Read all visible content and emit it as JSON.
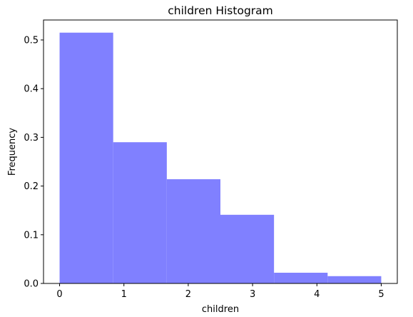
{
  "chart_data": {
    "type": "bar",
    "title": "children Histogram",
    "xlabel": "children",
    "ylabel": "Frequency",
    "bins": [
      {
        "x0": 0.0,
        "x1": 0.8333,
        "value": 0.515
      },
      {
        "x0": 0.8333,
        "x1": 1.6667,
        "value": 0.29
      },
      {
        "x0": 1.6667,
        "x1": 2.5,
        "value": 0.214
      },
      {
        "x0": 2.5,
        "x1": 3.3333,
        "value": 0.141
      },
      {
        "x0": 3.3333,
        "x1": 4.1667,
        "value": 0.022
      },
      {
        "x0": 4.1667,
        "x1": 5.0,
        "value": 0.015
      }
    ],
    "xlim": [
      -0.25,
      5.25
    ],
    "ylim": [
      0,
      0.541
    ],
    "xticks": [
      0,
      1,
      2,
      3,
      4,
      5
    ],
    "xtick_labels": [
      "0",
      "1",
      "2",
      "3",
      "4",
      "5"
    ],
    "yticks": [
      0.0,
      0.1,
      0.2,
      0.3,
      0.4,
      0.5
    ],
    "ytick_labels": [
      "0.0",
      "0.1",
      "0.2",
      "0.3",
      "0.4",
      "0.5"
    ],
    "bar_color": "#8080ff",
    "grid": false,
    "legend": false
  }
}
